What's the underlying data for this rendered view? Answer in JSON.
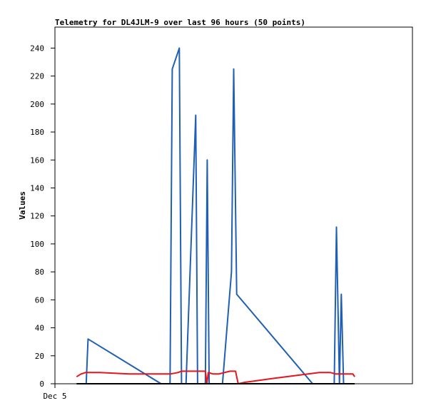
{
  "chart_data": {
    "type": "line",
    "title": "Telemetry for DL4JLM-9 over last 96 hours (50 points)",
    "xlabel": "",
    "ylabel": "Values",
    "xlim": [
      0,
      96
    ],
    "ylim": [
      0,
      255
    ],
    "x_tick_labels": [
      {
        "x": 0,
        "label": "Dec 5"
      }
    ],
    "y_ticks": [
      0,
      20,
      40,
      60,
      80,
      100,
      120,
      140,
      160,
      180,
      200,
      220,
      240
    ],
    "grid": false,
    "legend": "none",
    "series": [
      {
        "color": "#1f5fb4",
        "points": [
          [
            8.4,
            0
          ],
          [
            8.9,
            32
          ],
          [
            28.5,
            0
          ],
          [
            30.9,
            0
          ],
          [
            31.5,
            225
          ],
          [
            33.4,
            240
          ],
          [
            34.0,
            0
          ],
          [
            35.2,
            0
          ],
          [
            37.8,
            192
          ],
          [
            38.3,
            0
          ],
          [
            40.4,
            0
          ],
          [
            40.9,
            160
          ],
          [
            41.4,
            0
          ],
          [
            42.2,
            0
          ],
          [
            45.0,
            0
          ],
          [
            47.4,
            80
          ],
          [
            48.0,
            225
          ],
          [
            48.8,
            64
          ],
          [
            69.2,
            0
          ],
          [
            75.0,
            0
          ],
          [
            75.6,
            112
          ],
          [
            76.4,
            0
          ],
          [
            76.9,
            64
          ],
          [
            77.5,
            0
          ]
        ]
      },
      {
        "color": "#e8141b",
        "points": [
          [
            5.8,
            5
          ],
          [
            7.0,
            7
          ],
          [
            8.2,
            8
          ],
          [
            12.0,
            8
          ],
          [
            20.0,
            7
          ],
          [
            30.0,
            7
          ],
          [
            31.0,
            7
          ],
          [
            33.0,
            8
          ],
          [
            34.0,
            9
          ],
          [
            36.0,
            9
          ],
          [
            39.0,
            9
          ],
          [
            40.4,
            9
          ],
          [
            40.8,
            0
          ],
          [
            41.2,
            8
          ],
          [
            42.5,
            7
          ],
          [
            44.0,
            7
          ],
          [
            47.0,
            9
          ],
          [
            48.5,
            9
          ],
          [
            49.2,
            0
          ],
          [
            51.0,
            1
          ],
          [
            59.0,
            4
          ],
          [
            68.0,
            7
          ],
          [
            71.0,
            8
          ],
          [
            74.0,
            8
          ],
          [
            75.4,
            7
          ],
          [
            79.0,
            7
          ],
          [
            80.0,
            7
          ],
          [
            80.5,
            5
          ]
        ]
      },
      {
        "color": "#000000",
        "points": [
          [
            5.8,
            0
          ],
          [
            80.5,
            0
          ]
        ]
      }
    ]
  }
}
